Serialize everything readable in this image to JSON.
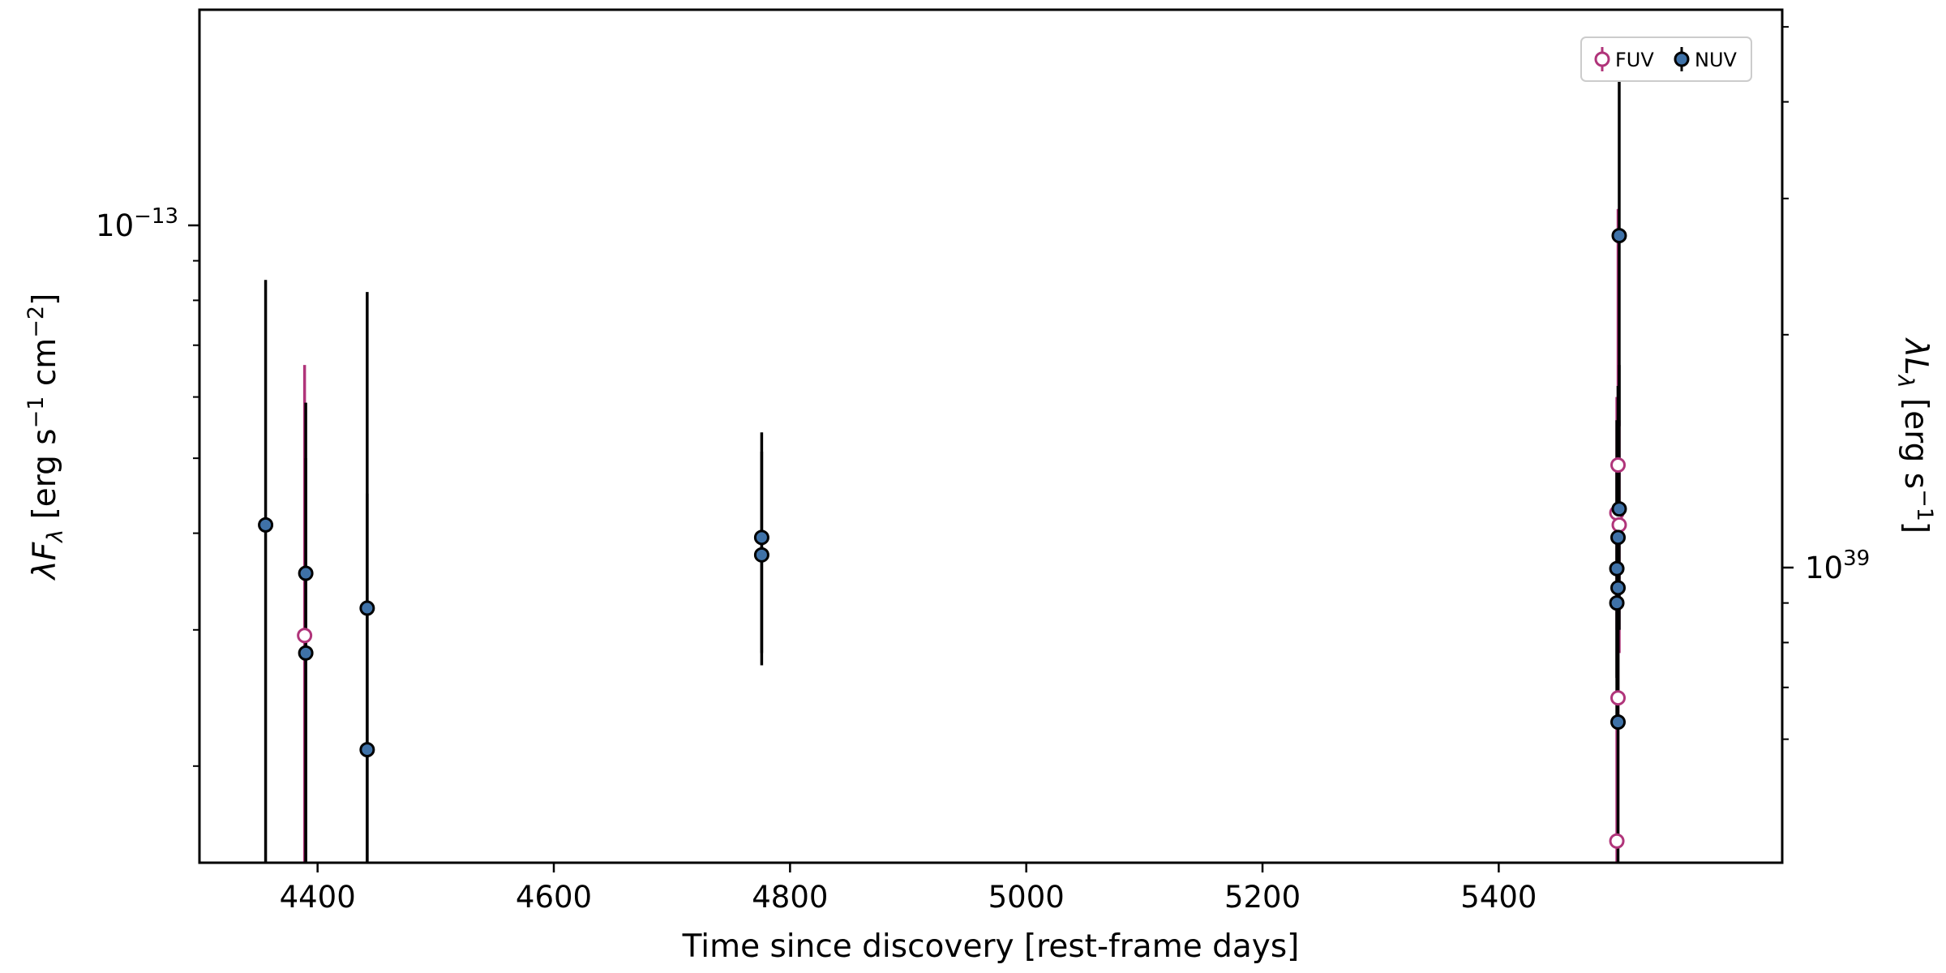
{
  "chart_data": {
    "type": "scatter",
    "x_axis": {
      "label": "Time since discovery [rest-frame days]",
      "range": [
        4300,
        5640
      ],
      "ticks": [
        4400,
        4600,
        4800,
        5000,
        5200,
        5400
      ]
    },
    "y_axis_left": {
      "label": "λF_λ [erg s^−1 cm^−2]",
      "scale": "log",
      "range": [
        1.5e-14,
        1.9e-13
      ],
      "major_tick": {
        "value": 1e-13,
        "mantissa": "10",
        "exponent": "−13"
      },
      "minor_ticks": [
        2e-14,
        3e-14,
        4e-14,
        5e-14,
        6e-14,
        7e-14,
        8e-14,
        9e-14
      ]
    },
    "y_axis_right": {
      "label": "λL_λ [erg s^−1]",
      "scale": "log",
      "major_tick": {
        "mantissa": "10",
        "exponent": "39"
      },
      "minor_ticks_ratio": [
        0.6,
        0.7,
        0.8,
        0.9,
        2,
        3,
        4,
        5
      ]
    },
    "grid": false,
    "legend_position": "top-right",
    "series": [
      {
        "name": "FUV",
        "color": "#b0347a",
        "marker": "open-circle",
        "points": [
          {
            "x": 4389,
            "y": 2.95e-14,
            "ylo": 1.5e-14,
            "yhi": 6.6e-14
          },
          {
            "x": 5500,
            "y": 4.25e-14,
            "ylo": 3e-14,
            "yhi": 6e-14
          },
          {
            "x": 5501,
            "y": 4.9e-14,
            "ylo": 3.4e-14,
            "yhi": 1.05e-13
          },
          {
            "x": 5502,
            "y": 4.1e-14,
            "ylo": 2.8e-14,
            "yhi": 5.6e-14
          },
          {
            "x": 5501,
            "y": 2.45e-14,
            "ylo": 1.6e-14,
            "yhi": 3.6e-14
          },
          {
            "x": 5500,
            "y": 1.6e-14,
            "ylo": 1.5e-14,
            "yhi": 2.3e-14
          }
        ]
      },
      {
        "name": "NUV",
        "color": "#3f72a8",
        "marker": "filled-circle",
        "points": [
          {
            "x": 4356,
            "y": 4.1e-14,
            "ylo": 1.5e-14,
            "yhi": 8.5e-14
          },
          {
            "x": 4390,
            "y": 3.55e-14,
            "ylo": 1.5e-14,
            "yhi": 5.9e-14
          },
          {
            "x": 4390,
            "y": 2.8e-14,
            "ylo": 1.5e-14,
            "yhi": 5e-14
          },
          {
            "x": 4442,
            "y": 3.2e-14,
            "ylo": 1.5e-14,
            "yhi": 8.2e-14
          },
          {
            "x": 4442,
            "y": 2.1e-14,
            "ylo": 1.5e-14,
            "yhi": 4.5e-14
          },
          {
            "x": 4776,
            "y": 3.95e-14,
            "ylo": 2.7e-14,
            "yhi": 5.4e-14
          },
          {
            "x": 4776,
            "y": 3.75e-14,
            "ylo": 2.8e-14,
            "yhi": 5.1e-14
          },
          {
            "x": 5502,
            "y": 9.7e-14,
            "ylo": 5.5e-14,
            "yhi": 1.75e-13
          },
          {
            "x": 5502,
            "y": 4.3e-14,
            "ylo": 3e-14,
            "yhi": 6.6e-14
          },
          {
            "x": 5501,
            "y": 3.95e-14,
            "ylo": 2.8e-14,
            "yhi": 6.2e-14
          },
          {
            "x": 5500,
            "y": 3.6e-14,
            "ylo": 2.6e-14,
            "yhi": 5.6e-14
          },
          {
            "x": 5501,
            "y": 3.4e-14,
            "ylo": 2.4e-14,
            "yhi": 5.2e-14
          },
          {
            "x": 5500,
            "y": 3.25e-14,
            "ylo": 2.3e-14,
            "yhi": 5e-14
          },
          {
            "x": 5501,
            "y": 2.28e-14,
            "ylo": 1.5e-14,
            "yhi": 3.6e-14
          }
        ]
      }
    ]
  }
}
